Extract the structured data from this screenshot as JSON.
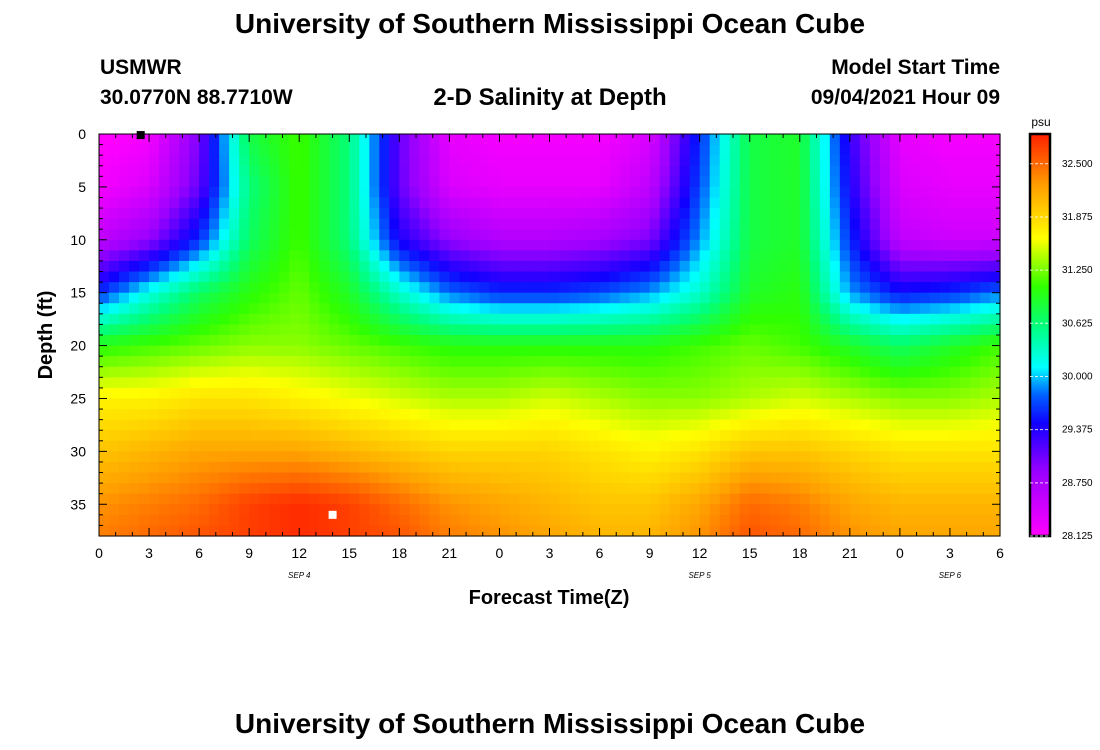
{
  "header": {
    "title": "University of Southern Mississippi Ocean Cube",
    "station": "USMWR",
    "coordinates": "30.0770N  88.7710W",
    "chart_title": "2-D Salinity at Depth",
    "start_label": "Model Start Time",
    "start_value": "09/04/2021 Hour 09"
  },
  "footer": {
    "title": "University of Southern Mississippi Ocean Cube"
  },
  "chart_data": {
    "type": "heatmap",
    "title": "2-D Salinity at Depth",
    "xlabel": "Forecast Time(Z)",
    "ylabel": "Depth (ft)",
    "x_ticks": [
      "0",
      "3",
      "6",
      "9",
      "12",
      "15",
      "18",
      "21",
      "0",
      "3",
      "6",
      "9",
      "12",
      "15",
      "18",
      "21",
      "0",
      "3",
      "6"
    ],
    "date_labels": [
      "SEP 4",
      "SEP 5",
      "SEP 6"
    ],
    "y_ticks": [
      "0",
      "5",
      "10",
      "15",
      "20",
      "25",
      "30",
      "35"
    ],
    "xlim_hours": [
      0,
      54
    ],
    "ylim_ft": [
      0,
      38
    ],
    "colorbar": {
      "unit": "psu",
      "labels": [
        "32.500",
        "31.875",
        "31.250",
        "30.625",
        "30.000",
        "29.375",
        "28.750",
        "28.125"
      ],
      "range": [
        28.125,
        32.85
      ]
    },
    "salinity_psu": {
      "x_hours": [
        0,
        3,
        6,
        9,
        12,
        15,
        18,
        21,
        24,
        27,
        30,
        33,
        36,
        39,
        42,
        45,
        48,
        51,
        54
      ],
      "y_ft": [
        0,
        5,
        10,
        15,
        20,
        25,
        30,
        35,
        38
      ],
      "values": [
        [
          28.1,
          28.2,
          29.0,
          30.8,
          31.1,
          30.6,
          29.1,
          28.3,
          28.2,
          28.2,
          28.2,
          28.4,
          29.6,
          30.8,
          30.9,
          29.3,
          28.3,
          28.2,
          28.2
        ],
        [
          28.2,
          28.4,
          29.1,
          30.6,
          31.1,
          30.6,
          29.1,
          28.4,
          28.3,
          28.3,
          28.3,
          28.6,
          29.7,
          30.8,
          30.9,
          29.4,
          28.4,
          28.3,
          28.3
        ],
        [
          28.6,
          28.9,
          29.6,
          30.7,
          31.1,
          30.6,
          29.4,
          28.9,
          28.7,
          28.7,
          28.8,
          29.0,
          29.9,
          30.8,
          30.9,
          29.6,
          28.6,
          28.5,
          28.5
        ],
        [
          29.6,
          30.2,
          30.7,
          31.0,
          31.2,
          30.9,
          30.3,
          29.8,
          29.6,
          29.6,
          29.7,
          29.9,
          30.3,
          30.9,
          31.0,
          29.9,
          29.5,
          29.6,
          29.8
        ],
        [
          31.0,
          31.1,
          31.2,
          31.3,
          31.3,
          31.2,
          31.1,
          31.0,
          31.0,
          31.0,
          31.0,
          31.0,
          31.1,
          31.2,
          31.1,
          30.9,
          30.7,
          30.9,
          31.1
        ],
        [
          31.7,
          31.7,
          31.8,
          31.8,
          31.7,
          31.6,
          31.5,
          31.4,
          31.4,
          31.5,
          31.4,
          31.3,
          31.3,
          31.4,
          31.5,
          31.4,
          31.3,
          31.3,
          31.4
        ],
        [
          32.0,
          32.1,
          32.2,
          32.2,
          32.2,
          32.1,
          32.0,
          31.9,
          31.9,
          31.9,
          31.8,
          31.7,
          31.8,
          32.0,
          32.0,
          31.9,
          31.8,
          31.8,
          31.8
        ],
        [
          32.3,
          32.4,
          32.5,
          32.7,
          32.8,
          32.7,
          32.5,
          32.3,
          32.2,
          32.1,
          32.0,
          32.0,
          32.2,
          32.5,
          32.4,
          32.2,
          32.1,
          32.1,
          32.1
        ],
        [
          32.4,
          32.5,
          32.6,
          32.7,
          32.8,
          32.7,
          32.6,
          32.4,
          32.3,
          32.2,
          32.1,
          32.1,
          32.3,
          32.6,
          32.5,
          32.3,
          32.2,
          32.2,
          32.2
        ]
      ]
    },
    "markers": [
      {
        "name": "surface-marker",
        "x_hours": 2.5,
        "y_ft": 0.1,
        "color": "#000000"
      },
      {
        "name": "bottom-marker",
        "x_hours": 14.0,
        "y_ft": 36.0,
        "color": "#ffffff"
      }
    ]
  }
}
